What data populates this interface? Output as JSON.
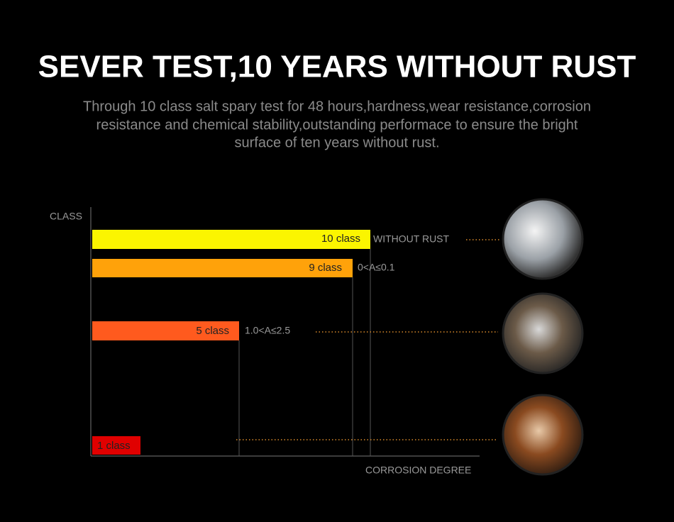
{
  "title": "SEVER TEST,10 YEARS WITHOUT RUST",
  "subtitle": [
    "Through 10 class salt spary test for 48 hours,hardness,wear resistance,corrosion",
    "resistance and chemical stability,outstanding performace to ensure the bright",
    "surface of ten years without rust."
  ],
  "y_axis_label": "CLASS",
  "x_axis_label": "CORROSION DEGREE",
  "bars": [
    {
      "label": "10 class",
      "annotation": "WITHOUT RUST"
    },
    {
      "label": "9 class",
      "annotation": "0<A≤0.1"
    },
    {
      "label": "5 class",
      "annotation": "1.0<A≤2.5"
    },
    {
      "label": "1 class"
    }
  ]
}
